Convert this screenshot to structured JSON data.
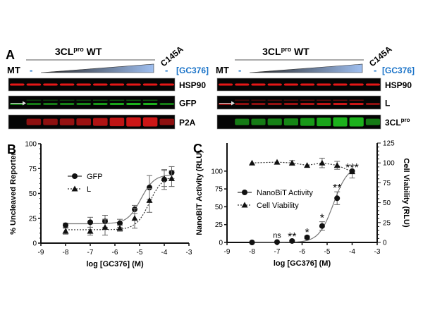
{
  "panel_a": {
    "label": "A",
    "left": {
      "header": "3CL",
      "header_sup": "pro",
      "header_suffix": " WT",
      "mt_label": "MT",
      "dash1": "-",
      "dash2": "-",
      "mutant_label": "C145A",
      "drug_label": "[GC376]",
      "rows": [
        "HSP90",
        "GFP",
        "P2A"
      ]
    },
    "right": {
      "header": "3CL",
      "header_sup": "pro",
      "header_suffix": " WT",
      "mt_label": "MT",
      "dash1": "-",
      "dash2": "-",
      "mutant_label": "C145A",
      "drug_label": "[GC376]",
      "rows": [
        "HSP90",
        "L",
        "3CL"
      ],
      "row3_sup": "pro"
    },
    "colors": {
      "red": "#ff1a1a",
      "green": "#22dd22",
      "drug": "#1a73c8",
      "wedge": "#9fbff0"
    }
  },
  "chart_data": [
    {
      "panel": "B",
      "type": "scatter",
      "xlabel": "log [GC376] (M)",
      "ylabel": "% Uncleaved Reporter",
      "xlim": [
        -9,
        -3
      ],
      "ylim": [
        0,
        100
      ],
      "xticks": [
        -9,
        -8,
        -7,
        -6,
        -5,
        -4,
        -3
      ],
      "yticks": [
        0,
        25,
        50,
        75,
        100
      ],
      "legend_position": "left-middle",
      "series": [
        {
          "name": "GFP",
          "marker": "circle",
          "line": "solid",
          "x": [
            -8,
            -7,
            -6.4,
            -5.8,
            -5.2,
            -4.6,
            -4,
            -3.7
          ],
          "y": [
            18,
            21,
            22,
            20,
            34,
            56,
            64,
            71
          ],
          "err": [
            2,
            5,
            6,
            4,
            4,
            12,
            10,
            6
          ],
          "fit": {
            "bottom": 19.5,
            "top": 69,
            "logec50": -4.95,
            "hill": 1.6
          }
        },
        {
          "name": "L",
          "marker": "triangle",
          "line": "dotted",
          "x": [
            -8,
            -7,
            -6.4,
            -5.8,
            -5.2,
            -4.6,
            -4,
            -3.7
          ],
          "y": [
            12,
            12,
            16,
            15,
            25,
            43,
            65,
            65
          ],
          "err": [
            3,
            4,
            8,
            3,
            10,
            12,
            8,
            8
          ],
          "fit": {
            "bottom": 13.5,
            "top": 68,
            "logec50": -4.6,
            "hill": 1.6
          }
        }
      ]
    },
    {
      "panel": "C",
      "type": "scatter",
      "xlabel": "log [GC376] (M)",
      "ylabel": "NanoBiT Activity (RLU)",
      "y2label": "Cell Viability (RLU)",
      "xlim": [
        -9,
        -3
      ],
      "ylim": [
        0,
        110
      ],
      "y2lim": [
        0,
        125
      ],
      "xticks": [
        -9,
        -8,
        -7,
        -6,
        -5,
        -4,
        -3
      ],
      "yticks": [
        0,
        25,
        50,
        75,
        100
      ],
      "y2ticks": [
        0,
        25,
        50,
        75,
        100,
        125
      ],
      "legend_position": "left-middle",
      "series": [
        {
          "name": "NanoBiT Activity",
          "axis": "left",
          "marker": "circle",
          "line": "solid",
          "x": [
            -8,
            -7,
            -6.4,
            -5.8,
            -5.2,
            -4.6,
            -4
          ],
          "y": [
            0,
            0.5,
            2,
            7,
            23,
            62,
            100
          ],
          "err": [
            0,
            0,
            1,
            2,
            6,
            9,
            0
          ],
          "significance": [
            "",
            "ns",
            "**",
            "*",
            "*",
            "**",
            "***"
          ],
          "fit": {
            "bottom": 0,
            "top": 108,
            "logec50": -4.75,
            "hill": 1.5
          }
        },
        {
          "name": "Cell Viability",
          "axis": "right",
          "marker": "triangle",
          "line": "dotted",
          "x": [
            -8,
            -7,
            -6.4,
            -5.8,
            -5.2,
            -4.6,
            -4
          ],
          "y": [
            100,
            101,
            100,
            97,
            100,
            97,
            89
          ],
          "err": [
            0,
            0,
            3,
            0,
            6,
            5,
            8
          ]
        }
      ]
    }
  ]
}
